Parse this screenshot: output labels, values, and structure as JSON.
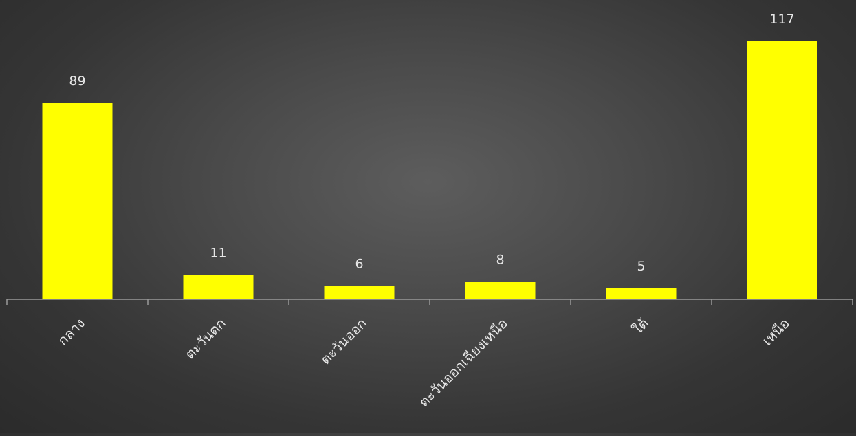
{
  "chart_data": {
    "type": "bar",
    "title": "",
    "xlabel": "",
    "ylabel": "",
    "categories": [
      "กลาง",
      "ตะวันตก",
      "ตะวันออก",
      "ตะวันออกเฉียงเหนือ",
      "ใต้",
      "เหนือ"
    ],
    "values": [
      89,
      11,
      6,
      8,
      5,
      117
    ],
    "ylim": [
      0,
      117
    ],
    "grid": false,
    "legend": "none",
    "colors": {
      "bar": "#ffff00",
      "axis": "#9a9a9a",
      "label": "#e6e6e6"
    }
  }
}
